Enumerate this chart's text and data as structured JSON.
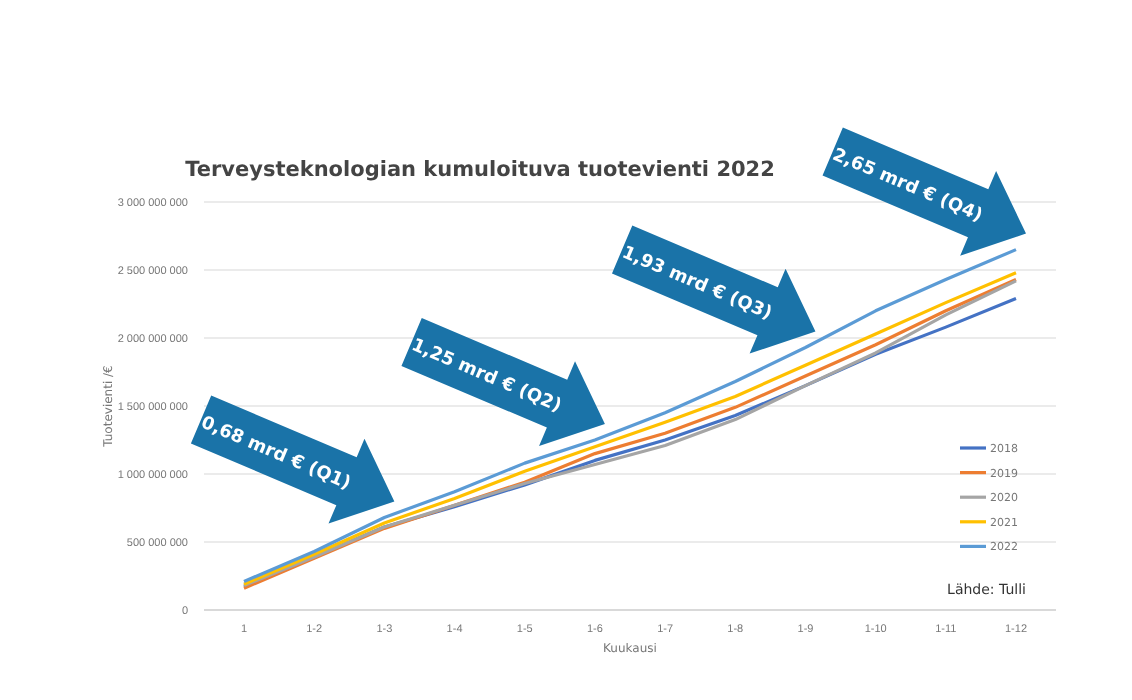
{
  "chart_data": {
    "type": "line",
    "title": "Terveysteknologian kumuloituva tuotevienti 2022",
    "xlabel": "Kuukausi",
    "ylabel": "Tuotevienti /€",
    "categories": [
      "1",
      "1-2",
      "1-3",
      "1-4",
      "1-5",
      "1-6",
      "1-7",
      "1-8",
      "1-9",
      "1-10",
      "1-11",
      "1-12"
    ],
    "series": [
      {
        "name": "2018",
        "color": "#4472c4",
        "values": [
          170000000,
          390000000,
          610000000,
          760000000,
          920000000,
          1100000000,
          1250000000,
          1430000000,
          1650000000,
          1880000000,
          2080000000,
          2290000000
        ]
      },
      {
        "name": "2019",
        "color": "#ed7d31",
        "values": [
          160000000,
          380000000,
          600000000,
          770000000,
          940000000,
          1150000000,
          1300000000,
          1490000000,
          1720000000,
          1950000000,
          2200000000,
          2430000000
        ]
      },
      {
        "name": "2020",
        "color": "#a5a5a5",
        "values": [
          180000000,
          390000000,
          610000000,
          770000000,
          930000000,
          1070000000,
          1210000000,
          1400000000,
          1650000000,
          1890000000,
          2170000000,
          2420000000
        ]
      },
      {
        "name": "2021",
        "color": "#ffc000",
        "values": [
          190000000,
          410000000,
          640000000,
          820000000,
          1020000000,
          1200000000,
          1380000000,
          1570000000,
          1800000000,
          2030000000,
          2260000000,
          2480000000
        ]
      },
      {
        "name": "2022",
        "color": "#5b9bd5",
        "values": [
          210000000,
          430000000,
          680000000,
          870000000,
          1080000000,
          1250000000,
          1450000000,
          1680000000,
          1930000000,
          2200000000,
          2430000000,
          2650000000
        ]
      }
    ],
    "ylim": [
      0,
      3000000000
    ],
    "yticks": [
      {
        "value": 0,
        "label": "0"
      },
      {
        "value": 500000000,
        "label": "500 000 000"
      },
      {
        "value": 1000000000,
        "label": "1 000 000 000"
      },
      {
        "value": 1500000000,
        "label": "1 500 000 000"
      },
      {
        "value": 2000000000,
        "label": "2 000 000 000"
      },
      {
        "value": 2500000000,
        "label": "2 500 000 000"
      },
      {
        "value": 3000000000,
        "label": "3 000 000 000"
      }
    ],
    "grid": "y",
    "legend": "right",
    "marker": "none",
    "line_style": "solid",
    "annotations": [
      {
        "text": "0,68 mrd € (Q1)",
        "x": "1-3",
        "y": 680000000
      },
      {
        "text": "1,25 mrd € (Q2)",
        "x": "1-6",
        "y": 1250000000
      },
      {
        "text": "1,93 mrd € (Q3)",
        "x": "1-9",
        "y": 1930000000
      },
      {
        "text": "2,65 mrd € (Q4)",
        "x": "1-12",
        "y": 2650000000
      },
      "Lähde:  Tulli"
    ]
  }
}
